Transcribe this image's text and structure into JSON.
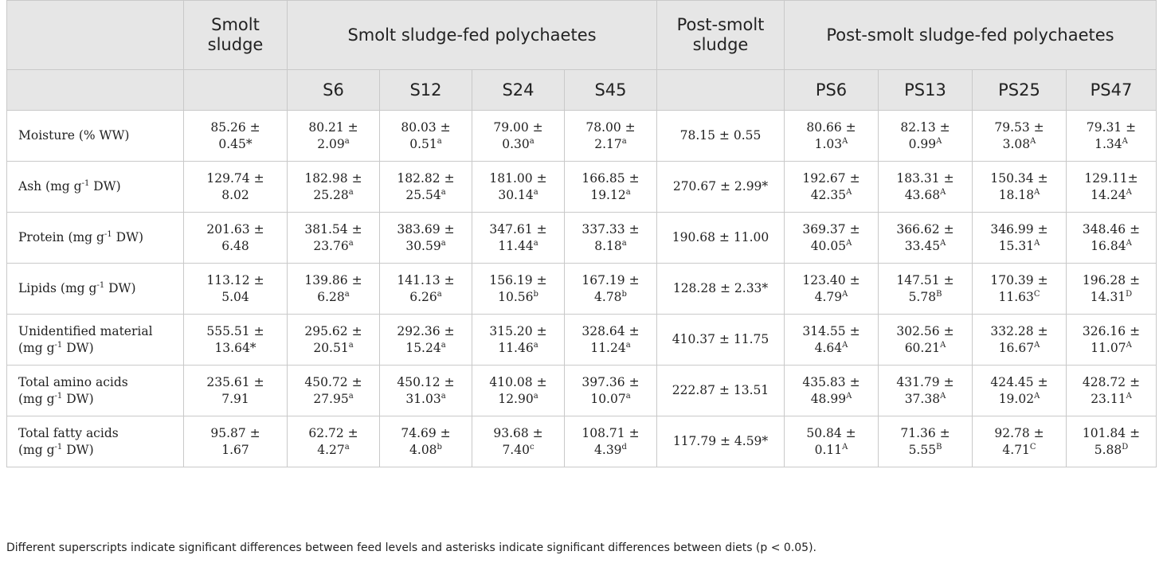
{
  "header": {
    "row1": [
      {
        "text": "",
        "colspan": 1
      },
      {
        "text": "Smolt sludge",
        "colspan": 1
      },
      {
        "text": "Smolt sludge-fed polychaetes",
        "colspan": 4
      },
      {
        "text": "Post-smolt sludge",
        "colspan": 1
      },
      {
        "text": "Post-smolt sludge-fed polychaetes",
        "colspan": 4
      }
    ],
    "row2": [
      "",
      "",
      "S6",
      "S12",
      "S24",
      "S45",
      "",
      "PS6",
      "PS13",
      "PS25",
      "PS47"
    ]
  },
  "rows": [
    {
      "label": [
        [
          "Moisture (% WW)",
          ""
        ]
      ],
      "cells": [
        [
          [
            "85.26 ±",
            ""
          ],
          [
            "0.45*",
            ""
          ]
        ],
        [
          [
            "80.21 ±",
            ""
          ],
          [
            "2.09",
            "a"
          ]
        ],
        [
          [
            "80.03 ±",
            ""
          ],
          [
            "0.51",
            "a"
          ]
        ],
        [
          [
            "79.00 ±",
            ""
          ],
          [
            "0.30",
            "a"
          ]
        ],
        [
          [
            "78.00 ±",
            ""
          ],
          [
            "2.17",
            "a"
          ]
        ],
        [
          [
            "78.15 ± 0.55",
            ""
          ]
        ],
        [
          [
            "80.66 ±",
            ""
          ],
          [
            "1.03",
            "A"
          ]
        ],
        [
          [
            "82.13 ±",
            ""
          ],
          [
            "0.99",
            "A"
          ]
        ],
        [
          [
            "79.53 ±",
            ""
          ],
          [
            "3.08",
            "A"
          ]
        ],
        [
          [
            "79.31 ±",
            ""
          ],
          [
            "1.34",
            "A"
          ]
        ]
      ]
    },
    {
      "label": [
        [
          "Ash (mg g",
          "-1",
          " DW)"
        ]
      ],
      "cells": [
        [
          [
            "129.74 ±",
            ""
          ],
          [
            "8.02",
            ""
          ]
        ],
        [
          [
            "182.98 ±",
            ""
          ],
          [
            "25.28",
            "a"
          ]
        ],
        [
          [
            "182.82 ±",
            ""
          ],
          [
            "25.54",
            "a"
          ]
        ],
        [
          [
            "181.00 ±",
            ""
          ],
          [
            "30.14",
            "a"
          ]
        ],
        [
          [
            "166.85 ±",
            ""
          ],
          [
            "19.12",
            "a"
          ]
        ],
        [
          [
            "270.67 ± 2.99*",
            ""
          ]
        ],
        [
          [
            "192.67 ±",
            ""
          ],
          [
            "42.35",
            "A"
          ]
        ],
        [
          [
            "183.31 ±",
            ""
          ],
          [
            "43.68",
            "A"
          ]
        ],
        [
          [
            "150.34 ±",
            ""
          ],
          [
            "18.18",
            "A"
          ]
        ],
        [
          [
            "129.11±",
            ""
          ],
          [
            "14.24",
            "A"
          ]
        ]
      ]
    },
    {
      "label": [
        [
          "Protein (mg g",
          "-1",
          " DW)"
        ]
      ],
      "cells": [
        [
          [
            "201.63 ±",
            ""
          ],
          [
            "6.48",
            ""
          ]
        ],
        [
          [
            "381.54 ±",
            ""
          ],
          [
            "23.76",
            "a"
          ]
        ],
        [
          [
            "383.69 ±",
            ""
          ],
          [
            "30.59",
            "a"
          ]
        ],
        [
          [
            "347.61 ±",
            ""
          ],
          [
            "11.44",
            "a"
          ]
        ],
        [
          [
            "337.33 ±",
            ""
          ],
          [
            "8.18",
            "a"
          ]
        ],
        [
          [
            "190.68 ± 11.00",
            ""
          ]
        ],
        [
          [
            "369.37 ±",
            ""
          ],
          [
            "40.05",
            "A"
          ]
        ],
        [
          [
            "366.62 ±",
            ""
          ],
          [
            "33.45",
            "A"
          ]
        ],
        [
          [
            "346.99 ±",
            ""
          ],
          [
            "15.31",
            "A"
          ]
        ],
        [
          [
            "348.46 ±",
            ""
          ],
          [
            "16.84",
            "A"
          ]
        ]
      ]
    },
    {
      "label": [
        [
          "Lipids (mg g",
          "-1",
          " DW)"
        ]
      ],
      "cells": [
        [
          [
            "113.12 ±",
            ""
          ],
          [
            "5.04",
            ""
          ]
        ],
        [
          [
            "139.86 ±",
            ""
          ],
          [
            "6.28",
            "a"
          ]
        ],
        [
          [
            "141.13 ±",
            ""
          ],
          [
            "6.26",
            "a"
          ]
        ],
        [
          [
            "156.19 ±",
            ""
          ],
          [
            "10.56",
            "b"
          ]
        ],
        [
          [
            "167.19 ±",
            ""
          ],
          [
            "4.78",
            "b"
          ]
        ],
        [
          [
            "128.28 ± 2.33*",
            ""
          ]
        ],
        [
          [
            "123.40 ±",
            ""
          ],
          [
            "4.79",
            "A"
          ]
        ],
        [
          [
            "147.51 ±",
            ""
          ],
          [
            "5.78",
            "B"
          ]
        ],
        [
          [
            "170.39 ±",
            ""
          ],
          [
            "11.63",
            "C"
          ]
        ],
        [
          [
            "196.28 ±",
            ""
          ],
          [
            "14.31",
            "D"
          ]
        ]
      ]
    },
    {
      "label": [
        [
          "Unidentified material",
          "",
          ""
        ],
        [
          "(mg g",
          "-1",
          " DW)"
        ]
      ],
      "cells": [
        [
          [
            "555.51 ±",
            ""
          ],
          [
            "13.64*",
            ""
          ]
        ],
        [
          [
            "295.62 ±",
            ""
          ],
          [
            "20.51",
            "a"
          ]
        ],
        [
          [
            "292.36 ±",
            ""
          ],
          [
            "15.24",
            "a"
          ]
        ],
        [
          [
            "315.20 ±",
            ""
          ],
          [
            "11.46",
            "a"
          ]
        ],
        [
          [
            "328.64 ±",
            ""
          ],
          [
            "11.24",
            "a"
          ]
        ],
        [
          [
            "410.37 ± 11.75",
            ""
          ]
        ],
        [
          [
            "314.55 ±",
            ""
          ],
          [
            "4.64",
            "A"
          ]
        ],
        [
          [
            "302.56 ±",
            ""
          ],
          [
            "60.21",
            "A"
          ]
        ],
        [
          [
            "332.28 ±",
            ""
          ],
          [
            "16.67",
            "A"
          ]
        ],
        [
          [
            "326.16 ±",
            ""
          ],
          [
            "11.07",
            "A"
          ]
        ]
      ]
    },
    {
      "label": [
        [
          "Total amino acids",
          "",
          ""
        ],
        [
          "(mg g",
          "-1",
          " DW)"
        ]
      ],
      "cells": [
        [
          [
            "235.61 ±",
            ""
          ],
          [
            "7.91",
            ""
          ]
        ],
        [
          [
            "450.72 ±",
            ""
          ],
          [
            "27.95",
            "a"
          ]
        ],
        [
          [
            "450.12 ±",
            ""
          ],
          [
            "31.03",
            "a"
          ]
        ],
        [
          [
            "410.08 ±",
            ""
          ],
          [
            "12.90",
            "a"
          ]
        ],
        [
          [
            "397.36 ±",
            ""
          ],
          [
            "10.07",
            "a"
          ]
        ],
        [
          [
            "222.87 ± 13.51",
            ""
          ]
        ],
        [
          [
            "435.83 ±",
            ""
          ],
          [
            "48.99",
            "A"
          ]
        ],
        [
          [
            "431.79 ±",
            ""
          ],
          [
            "37.38",
            "A"
          ]
        ],
        [
          [
            "424.45 ±",
            ""
          ],
          [
            "19.02",
            "A"
          ]
        ],
        [
          [
            "428.72 ±",
            ""
          ],
          [
            "23.11",
            "A"
          ]
        ]
      ]
    },
    {
      "label": [
        [
          "Total fatty acids",
          "",
          ""
        ],
        [
          "(mg g",
          "-1",
          " DW)"
        ]
      ],
      "cells": [
        [
          [
            "95.87 ±",
            ""
          ],
          [
            "1.67",
            ""
          ]
        ],
        [
          [
            "62.72 ±",
            ""
          ],
          [
            "4.27",
            "a"
          ]
        ],
        [
          [
            "74.69 ±",
            ""
          ],
          [
            "4.08",
            "b"
          ]
        ],
        [
          [
            "93.68 ±",
            ""
          ],
          [
            "7.40",
            "c"
          ]
        ],
        [
          [
            "108.71 ±",
            ""
          ],
          [
            "4.39",
            "d"
          ]
        ],
        [
          [
            "117.79 ± 4.59*",
            ""
          ]
        ],
        [
          [
            "50.84 ±",
            ""
          ],
          [
            "0.11",
            "A"
          ]
        ],
        [
          [
            "71.36 ±",
            ""
          ],
          [
            "5.55",
            "B"
          ]
        ],
        [
          [
            "92.78 ±",
            ""
          ],
          [
            "4.71",
            "C"
          ]
        ],
        [
          [
            "101.84 ±",
            ""
          ],
          [
            "5.88",
            "D"
          ]
        ]
      ]
    }
  ],
  "footnote": "Different superscripts indicate significant differences between feed levels and asterisks indicate significant differences between diets (p < 0.05)."
}
